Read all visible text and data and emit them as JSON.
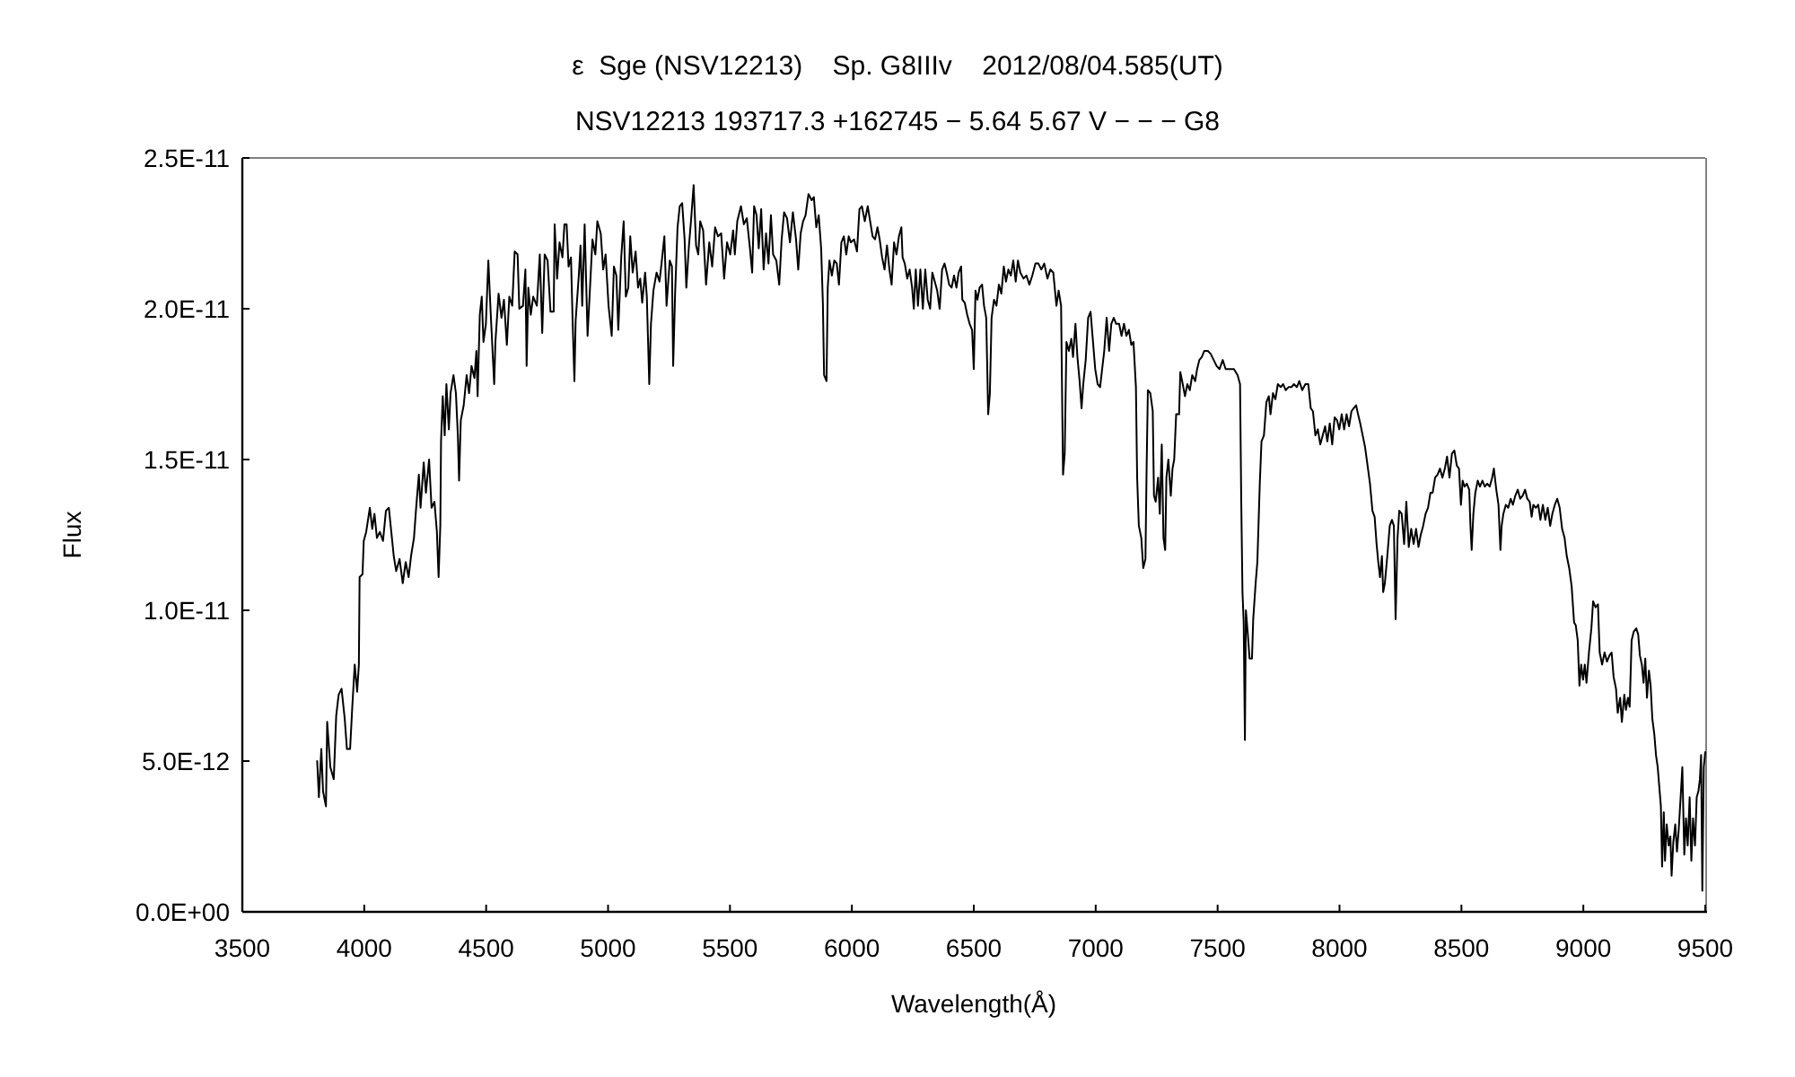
{
  "chart_data": {
    "type": "line",
    "title": "ε  Sge (NSV12213)    Sp. G8IIIv    2012/08/04.585(UT)",
    "subtitle": "NSV12213 193717.3 +162745 − 5.64 5.67 V − − − G8",
    "xlabel": "Wavelength(Å)",
    "ylabel": "Flux",
    "xlim": [
      3500,
      9500
    ],
    "xticks": [
      3500,
      4000,
      4500,
      5000,
      5500,
      6000,
      6500,
      7000,
      7500,
      8000,
      8500,
      9000,
      9500
    ],
    "ylim": [
      0,
      2.5e-11
    ],
    "yticks": [
      {
        "value": 0,
        "label": "0.0E+00"
      },
      {
        "value": 5e-12,
        "label": "5.0E-12"
      },
      {
        "value": 1e-11,
        "label": "1.0E-11"
      },
      {
        "value": 1.5e-11,
        "label": "1.5E-11"
      },
      {
        "value": 2e-11,
        "label": "2.0E-11"
      },
      {
        "value": 2.5e-11,
        "label": "2.5E-11"
      }
    ],
    "x": [
      3807,
      3814,
      3824,
      3831,
      3843,
      3848,
      3861,
      3875,
      3885,
      3895,
      3907,
      3920,
      3929,
      3942,
      3951,
      3961,
      3971,
      3978,
      3981,
      3993,
      3998,
      4008,
      4023,
      4033,
      4042,
      4052,
      4064,
      4077,
      4089,
      4101,
      4111,
      4121,
      4131,
      4145,
      4158,
      4170,
      4182,
      4192,
      4204,
      4212,
      4224,
      4231,
      4244,
      4253,
      4266,
      4276,
      4288,
      4298,
      4305,
      4312,
      4315,
      4322,
      4330,
      4337,
      4347,
      4354,
      4366,
      4376,
      4384,
      4389,
      4396,
      4408,
      4420,
      4430,
      4440,
      4452,
      4460,
      4465,
      4474,
      4482,
      4489,
      4499,
      4509,
      4519,
      4533,
      4538,
      4551,
      4563,
      4573,
      4585,
      4595,
      4607,
      4617,
      4629,
      4636,
      4651,
      4661,
      4666,
      4673,
      4683,
      4693,
      4708,
      4720,
      4730,
      4740,
      4752,
      4764,
      4777,
      4781,
      4791,
      4801,
      4813,
      4821,
      4830,
      4838,
      4848,
      4855,
      4862,
      4867,
      4880,
      4887,
      4894,
      4904,
      4916,
      4926,
      4936,
      4948,
      4956,
      4970,
      4980,
      4990,
      5002,
      5015,
      5024,
      5034,
      5042,
      5054,
      5064,
      5073,
      5083,
      5091,
      5101,
      5113,
      5123,
      5132,
      5140,
      5152,
      5159,
      5169,
      5176,
      5186,
      5199,
      5211,
      5218,
      5231,
      5240,
      5253,
      5262,
      5267,
      5275,
      5285,
      5294,
      5304,
      5314,
      5321,
      5331,
      5341,
      5351,
      5361,
      5370,
      5378,
      5390,
      5402,
      5415,
      5427,
      5439,
      5451,
      5464,
      5476,
      5488,
      5501,
      5513,
      5520,
      5530,
      5545,
      5557,
      5569,
      5582,
      5591,
      5599,
      5609,
      5618,
      5628,
      5638,
      5648,
      5658,
      5668,
      5677,
      5690,
      5702,
      5712,
      5722,
      5734,
      5746,
      5758,
      5771,
      5780,
      5790,
      5800,
      5810,
      5822,
      5835,
      5844,
      5854,
      5864,
      5874,
      5881,
      5886,
      5896,
      5901,
      5908,
      5918,
      5928,
      5938,
      5947,
      5957,
      5967,
      5977,
      5987,
      5996,
      6009,
      6021,
      6031,
      6041,
      6053,
      6065,
      6075,
      6085,
      6095,
      6105,
      6114,
      6124,
      6134,
      6144,
      6154,
      6163,
      6173,
      6183,
      6193,
      6203,
      6208,
      6217,
      6227,
      6237,
      6247,
      6254,
      6262,
      6271,
      6281,
      6291,
      6301,
      6311,
      6321,
      6330,
      6340,
      6350,
      6360,
      6370,
      6380,
      6389,
      6399,
      6409,
      6419,
      6429,
      6438,
      6448,
      6453,
      6463,
      6473,
      6483,
      6493,
      6500,
      6507,
      6515,
      6524,
      6534,
      6542,
      6551,
      6559,
      6566,
      6573,
      6583,
      6593,
      6603,
      6613,
      6623,
      6632,
      6642,
      6652,
      6662,
      6672,
      6681,
      6691,
      6704,
      6716,
      6728,
      6740,
      6753,
      6765,
      6777,
      6789,
      6802,
      6814,
      6826,
      6839,
      6848,
      6858,
      6866,
      6873,
      6880,
      6890,
      6900,
      6907,
      6917,
      6925,
      6934,
      6942,
      6949,
      6959,
      6969,
      6979,
      6988,
      6998,
      7008,
      7018,
      7025,
      7035,
      7045,
      7055,
      7064,
      7074,
      7084,
      7096,
      7106,
      7116,
      7126,
      7136,
      7146,
      7155,
      7165,
      7170,
      7177,
      7187,
      7195,
      7204,
      7209,
      7214,
      7224,
      7234,
      7239,
      7246,
      7256,
      7263,
      7271,
      7278,
      7285,
      7290,
      7298,
      7308,
      7315,
      7322,
      7330,
      7342,
      7347,
      7357,
      7366,
      7376,
      7386,
      7396,
      7408,
      7416,
      7425,
      7435,
      7445,
      7460,
      7472,
      7484,
      7496,
      7508,
      7521,
      7533,
      7550,
      7567,
      7582,
      7592,
      7597,
      7602,
      7607,
      7612,
      7616,
      7624,
      7631,
      7641,
      7646,
      7656,
      7663,
      7673,
      7680,
      7690,
      7700,
      7710,
      7717,
      7727,
      7737,
      7747,
      7759,
      7769,
      7779,
      7791,
      7803,
      7813,
      7825,
      7835,
      7847,
      7860,
      7872,
      7882,
      7891,
      7901,
      7911,
      7921,
      7931,
      7941,
      7950,
      7960,
      7970,
      7980,
      7990,
      7999,
      8009,
      8019,
      8029,
      8039,
      8049,
      8058,
      8068,
      8076,
      8085,
      8095,
      8105,
      8115,
      8125,
      8135,
      8144,
      8152,
      8159,
      8166,
      8174,
      8179,
      8186,
      8196,
      8206,
      8215,
      8223,
      8230,
      8238,
      8245,
      8255,
      8265,
      8274,
      8284,
      8294,
      8304,
      8314,
      8324,
      8333,
      8343,
      8353,
      8363,
      8373,
      8382,
      8392,
      8402,
      8412,
      8422,
      8432,
      8441,
      8451,
      8461,
      8471,
      8481,
      8490,
      8498,
      8505,
      8513,
      8522,
      8532,
      8537,
      8542,
      8549,
      8557,
      8567,
      8576,
      8586,
      8596,
      8606,
      8616,
      8626,
      8633,
      8643,
      8652,
      8660,
      8665,
      8672,
      8682,
      8692,
      8702,
      8711,
      8721,
      8731,
      8741,
      8751,
      8761,
      8770,
      8780,
      8788,
      8795,
      8805,
      8815,
      8824,
      8834,
      8844,
      8854,
      8864,
      8873,
      8883,
      8893,
      8903,
      8913,
      8923,
      8932,
      8942,
      8952,
      8962,
      8969,
      8977,
      8984,
      8991,
      8999,
      9006,
      9013,
      9023,
      9033,
      9040,
      9050,
      9060,
      9067,
      9077,
      9087,
      9097,
      9107,
      9116,
      9124,
      9134,
      9141,
      9151,
      9158,
      9168,
      9175,
      9183,
      9190,
      9198,
      9207,
      9217,
      9225,
      9232,
      9240,
      9247,
      9254,
      9261,
      9269,
      9276,
      9283,
      9291,
      9298,
      9305,
      9313,
      9318,
      9323,
      9330,
      9335,
      9342,
      9350,
      9357,
      9362,
      9369,
      9377,
      9384,
      9391,
      9399,
      9406,
      9414,
      9421,
      9428,
      9436,
      9443,
      9450,
      9458,
      9465,
      9472,
      9478,
      9483,
      9488,
      9494,
      9500
    ],
    "series": [
      {
        "color": "#000000",
        "values": [
          5e-12,
          3.8e-12,
          5.4e-12,
          4e-12,
          3.5e-12,
          6.3e-12,
          4.8e-12,
          4.4e-12,
          6.5e-12,
          7.2e-12,
          7.4e-12,
          6.4e-12,
          5.4e-12,
          5.4e-12,
          6.8e-12,
          8.2e-12,
          7.3e-12,
          8.2e-12,
          1.11e-11,
          1.12e-11,
          1.23e-11,
          1.26e-11,
          1.34e-11,
          1.27e-11,
          1.32e-11,
          1.24e-11,
          1.26e-11,
          1.23e-11,
          1.33e-11,
          1.34e-11,
          1.26e-11,
          1.18e-11,
          1.13e-11,
          1.17e-11,
          1.09e-11,
          1.16e-11,
          1.11e-11,
          1.18e-11,
          1.24e-11,
          1.33e-11,
          1.45e-11,
          1.34e-11,
          1.49e-11,
          1.39e-11,
          1.5e-11,
          1.34e-11,
          1.36e-11,
          1.26e-11,
          1.11e-11,
          1.28e-11,
          1.56e-11,
          1.71e-11,
          1.58e-11,
          1.75e-11,
          1.6e-11,
          1.72e-11,
          1.78e-11,
          1.72e-11,
          1.58e-11,
          1.43e-11,
          1.63e-11,
          1.68e-11,
          1.78e-11,
          1.72e-11,
          1.81e-11,
          1.77e-11,
          1.86e-11,
          1.71e-11,
          1.98e-11,
          2.04e-11,
          1.89e-11,
          1.95e-11,
          2.16e-11,
          1.98e-11,
          1.75e-11,
          1.89e-11,
          2.05e-11,
          1.97e-11,
          2.03e-11,
          1.88e-11,
          2.04e-11,
          2.01e-11,
          2.19e-11,
          2.18e-11,
          2e-11,
          2.01e-11,
          2.13e-11,
          1.81e-11,
          2.07e-11,
          1.98e-11,
          2.04e-11,
          2.01e-11,
          2.18e-11,
          1.92e-11,
          2.18e-11,
          2.16e-11,
          1.99e-11,
          1.99e-11,
          2.28e-11,
          2.1e-11,
          2.22e-11,
          2.17e-11,
          2.28e-11,
          2.28e-11,
          2.14e-11,
          2.17e-11,
          1.95e-11,
          1.76e-11,
          1.96e-11,
          2.11e-11,
          2.21e-11,
          2.01e-11,
          2.28e-11,
          1.91e-11,
          2.07e-11,
          2.23e-11,
          2.18e-11,
          2.29e-11,
          2.25e-11,
          2.13e-11,
          2.18e-11,
          2.01e-11,
          1.91e-11,
          2.14e-11,
          2.11e-11,
          1.93e-11,
          2.17e-11,
          2.29e-11,
          2.04e-11,
          2.07e-11,
          2.24e-11,
          2.12e-11,
          2.19e-11,
          2.07e-11,
          2.1e-11,
          2.02e-11,
          2.12e-11,
          2.04e-11,
          1.75e-11,
          1.95e-11,
          2.06e-11,
          2.12e-11,
          2.09e-11,
          2.14e-11,
          2.24e-11,
          2.01e-11,
          2.16e-11,
          2.14e-11,
          1.81e-11,
          2.05e-11,
          2.27e-11,
          2.34e-11,
          2.35e-11,
          2.23e-11,
          2.07e-11,
          2.2e-11,
          2.3e-11,
          2.41e-11,
          2.21e-11,
          2.18e-11,
          2.29e-11,
          2.26e-11,
          2.08e-11,
          2.22e-11,
          2.14e-11,
          2.27e-11,
          2.24e-11,
          2.25e-11,
          2.1e-11,
          2.22e-11,
          2.18e-11,
          2.26e-11,
          2.18e-11,
          2.29e-11,
          2.34e-11,
          2.28e-11,
          2.3e-11,
          2.2e-11,
          2.12e-11,
          2.34e-11,
          2.31e-11,
          2.2e-11,
          2.33e-11,
          2.13e-11,
          2.25e-11,
          2.15e-11,
          2.31e-11,
          2.18e-11,
          2.16e-11,
          2.08e-11,
          2.23e-11,
          2.32e-11,
          2.3e-11,
          2.22e-11,
          2.32e-11,
          2.23e-11,
          2.13e-11,
          2.25e-11,
          2.29e-11,
          2.31e-11,
          2.38e-11,
          2.36e-11,
          2.37e-11,
          2.27e-11,
          2.31e-11,
          2.2e-11,
          2.02e-11,
          1.78e-11,
          1.76e-11,
          2.07e-11,
          2.16e-11,
          2.11e-11,
          2.16e-11,
          2.15e-11,
          2.08e-11,
          2.22e-11,
          2.24e-11,
          2.18e-11,
          2.24e-11,
          2.22e-11,
          2.23e-11,
          2.19e-11,
          2.33e-11,
          2.34e-11,
          2.29e-11,
          2.34e-11,
          2.29e-11,
          2.24e-11,
          2.23e-11,
          2.27e-11,
          2.23e-11,
          2.17e-11,
          2.13e-11,
          2.21e-11,
          2.13e-11,
          2.08e-11,
          2.22e-11,
          2.18e-11,
          2.24e-11,
          2.27e-11,
          2.17e-11,
          2.15e-11,
          2.1e-11,
          2.13e-11,
          2.07e-11,
          2e-11,
          2.13e-11,
          2.01e-11,
          2.13e-11,
          2e-11,
          2.13e-11,
          2.03e-11,
          2e-11,
          2.12e-11,
          2.09e-11,
          2.06e-11,
          2e-11,
          2.13e-11,
          2.15e-11,
          2.12e-11,
          2.08e-11,
          2.07e-11,
          2.11e-11,
          2.07e-11,
          2.12e-11,
          2.14e-11,
          2.03e-11,
          2.02e-11,
          1.98e-11,
          1.95e-11,
          1.93e-11,
          1.8e-11,
          2.06e-11,
          2.03e-11,
          2.07e-11,
          2.08e-11,
          2.01e-11,
          1.97e-11,
          1.65e-11,
          1.72e-11,
          1.97e-11,
          2.03e-11,
          2.01e-11,
          2.08e-11,
          2.05e-11,
          2.14e-11,
          2.09e-11,
          2.13e-11,
          2.11e-11,
          2.16e-11,
          2.09e-11,
          2.16e-11,
          2.12e-11,
          2.1e-11,
          2.11e-11,
          2.08e-11,
          2.11e-11,
          2.15e-11,
          2.15e-11,
          2.13e-11,
          2.15e-11,
          2.1e-11,
          2.13e-11,
          2.12e-11,
          2.01e-11,
          2.06e-11,
          2.01e-11,
          1.45e-11,
          1.52e-11,
          1.89e-11,
          1.86e-11,
          1.9e-11,
          1.84e-11,
          1.95e-11,
          1.84e-11,
          1.76e-11,
          1.67e-11,
          1.75e-11,
          1.83e-11,
          1.97e-11,
          1.99e-11,
          1.9e-11,
          1.8e-11,
          1.75e-11,
          1.74e-11,
          1.79e-11,
          1.86e-11,
          1.97e-11,
          1.86e-11,
          1.95e-11,
          1.97e-11,
          1.95e-11,
          1.95e-11,
          1.91e-11,
          1.95e-11,
          1.91e-11,
          1.93e-11,
          1.88e-11,
          1.89e-11,
          1.74e-11,
          1.44e-11,
          1.28e-11,
          1.24e-11,
          1.14e-11,
          1.17e-11,
          1.48e-11,
          1.73e-11,
          1.72e-11,
          1.66e-11,
          1.38e-11,
          1.36e-11,
          1.44e-11,
          1.32e-11,
          1.55e-11,
          1.24e-11,
          1.2e-11,
          1.44e-11,
          1.5e-11,
          1.38e-11,
          1.47e-11,
          1.5e-11,
          1.65e-11,
          1.65e-11,
          1.79e-11,
          1.75e-11,
          1.71e-11,
          1.75e-11,
          1.73e-11,
          1.78e-11,
          1.76e-11,
          1.8e-11,
          1.83e-11,
          1.84e-11,
          1.86e-11,
          1.86e-11,
          1.85e-11,
          1.83e-11,
          1.81e-11,
          1.8e-11,
          1.83e-11,
          1.8e-11,
          1.8e-11,
          1.8e-11,
          1.78e-11,
          1.75e-11,
          1.36e-11,
          1.06e-11,
          9.6e-12,
          5.7e-12,
          1e-11,
          9.2e-12,
          8.4e-12,
          8.4e-12,
          9.7e-12,
          1.09e-11,
          1.16e-11,
          1.42e-11,
          1.56e-11,
          1.58e-11,
          1.69e-11,
          1.71e-11,
          1.65e-11,
          1.72e-11,
          1.7e-11,
          1.75e-11,
          1.74e-11,
          1.75e-11,
          1.73e-11,
          1.74e-11,
          1.74e-11,
          1.75e-11,
          1.74e-11,
          1.76e-11,
          1.73e-11,
          1.75e-11,
          1.75e-11,
          1.67e-11,
          1.66e-11,
          1.58e-11,
          1.6e-11,
          1.55e-11,
          1.58e-11,
          1.61e-11,
          1.56e-11,
          1.62e-11,
          1.55e-11,
          1.64e-11,
          1.63e-11,
          1.6e-11,
          1.65e-11,
          1.6e-11,
          1.65e-11,
          1.61e-11,
          1.66e-11,
          1.67e-11,
          1.68e-11,
          1.65e-11,
          1.62e-11,
          1.58e-11,
          1.54e-11,
          1.48e-11,
          1.42e-11,
          1.33e-11,
          1.31e-11,
          1.22e-11,
          1.16e-11,
          1.11e-11,
          1.18e-11,
          1.06e-11,
          1.09e-11,
          1.18e-11,
          1.28e-11,
          1.3e-11,
          1.28e-11,
          9.7e-12,
          1.24e-11,
          1.33e-11,
          1.32e-11,
          1.22e-11,
          1.36e-11,
          1.21e-11,
          1.27e-11,
          1.22e-11,
          1.27e-11,
          1.21e-11,
          1.25e-11,
          1.28e-11,
          1.32e-11,
          1.34e-11,
          1.39e-11,
          1.39e-11,
          1.44e-11,
          1.45e-11,
          1.47e-11,
          1.44e-11,
          1.47e-11,
          1.51e-11,
          1.44e-11,
          1.52e-11,
          1.53e-11,
          1.48e-11,
          1.47e-11,
          1.35e-11,
          1.43e-11,
          1.41e-11,
          1.42e-11,
          1.4e-11,
          1.28e-11,
          1.2e-11,
          1.32e-11,
          1.39e-11,
          1.43e-11,
          1.41e-11,
          1.43e-11,
          1.41e-11,
          1.42e-11,
          1.41e-11,
          1.44e-11,
          1.47e-11,
          1.4e-11,
          1.35e-11,
          1.2e-11,
          1.28e-11,
          1.32e-11,
          1.35e-11,
          1.34e-11,
          1.37e-11,
          1.35e-11,
          1.38e-11,
          1.4e-11,
          1.37e-11,
          1.38e-11,
          1.4e-11,
          1.37e-11,
          1.36e-11,
          1.31e-11,
          1.35e-11,
          1.34e-11,
          1.35e-11,
          1.3e-11,
          1.35e-11,
          1.3e-11,
          1.34e-11,
          1.28e-11,
          1.32e-11,
          1.35e-11,
          1.37e-11,
          1.34e-11,
          1.27e-11,
          1.24e-11,
          1.18e-11,
          1.14e-11,
          1.08e-11,
          9.6e-12,
          9.5e-12,
          9e-12,
          7.5e-12,
          8.2e-12,
          7.7e-12,
          8.2e-12,
          7.6e-12,
          8.6e-12,
          9.4e-12,
          1.03e-11,
          1.01e-11,
          1.02e-11,
          8.6e-12,
          8.2e-12,
          8.6e-12,
          8.3e-12,
          8.5e-12,
          8.6e-12,
          7.8e-12,
          7.4e-12,
          6.6e-12,
          7.1e-12,
          6.3e-12,
          7.2e-12,
          6.7e-12,
          7.1e-12,
          6.8e-12,
          9e-12,
          9.3e-12,
          9.4e-12,
          9.2e-12,
          8.5e-12,
          8.2e-12,
          7.6e-12,
          8.4e-12,
          7.1e-12,
          8e-12,
          7.5e-12,
          6.4e-12,
          5.9e-12,
          5.2e-12,
          4.8e-12,
          4e-12,
          3.5e-12,
          1.5e-12,
          3.3e-12,
          1.7e-12,
          2.9e-12,
          2.2e-12,
          2.5e-12,
          1.2e-12,
          2.3e-12,
          2.9e-12,
          2e-12,
          2.7e-12,
          3.8e-12,
          4.8e-12,
          1.9e-12,
          3.1e-12,
          2.2e-12,
          3.8e-12,
          1.7e-12,
          3.1e-12,
          2.2e-12,
          3.8e-12,
          4e-12,
          4.4e-12,
          5.2e-12,
          7e-13,
          4.8e-12,
          5.3e-12
        ]
      }
    ]
  }
}
